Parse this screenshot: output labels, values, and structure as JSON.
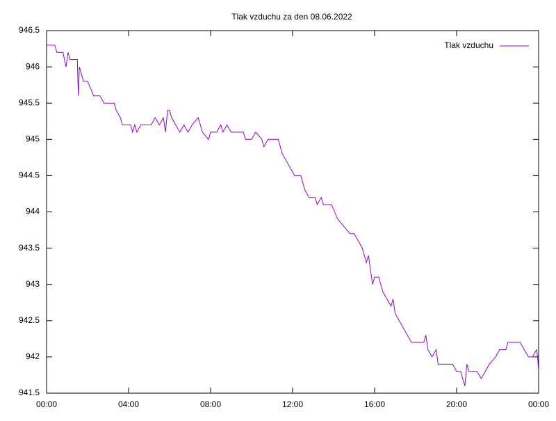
{
  "chart_data": {
    "type": "line",
    "title": "Tlak vzduchu za den 08.06.2022",
    "x": [
      0,
      0.4,
      0.5,
      0.8,
      0.95,
      1.05,
      1.15,
      1.3,
      1.5,
      1.55,
      1.6,
      1.7,
      1.8,
      2.0,
      2.3,
      2.6,
      2.8,
      3.3,
      3.4,
      3.6,
      3.7,
      4.1,
      4.2,
      4.3,
      4.4,
      4.6,
      5.1,
      5.3,
      5.5,
      5.7,
      5.8,
      5.9,
      6.0,
      6.1,
      6.3,
      6.5,
      6.7,
      6.9,
      7.1,
      7.4,
      7.6,
      7.9,
      8.0,
      8.3,
      8.5,
      8.6,
      8.8,
      9.0,
      9.6,
      9.7,
      10.0,
      10.2,
      10.5,
      10.6,
      10.8,
      11.3,
      11.5,
      11.7,
      11.9,
      12.1,
      12.4,
      12.6,
      12.8,
      13.1,
      13.2,
      13.4,
      13.5,
      13.9,
      14.2,
      14.5,
      14.8,
      15.0,
      15.2,
      15.4,
      15.6,
      15.7,
      15.8,
      15.9,
      16.0,
      16.2,
      16.4,
      16.6,
      16.8,
      16.9,
      17.0,
      17.2,
      17.4,
      17.6,
      17.8,
      18.4,
      18.5,
      18.6,
      18.8,
      19.0,
      19.1,
      19.8,
      20.0,
      20.2,
      20.4,
      20.5,
      20.6,
      21.0,
      21.2,
      21.4,
      21.6,
      21.9,
      22.1,
      22.4,
      22.5,
      23.1,
      23.3,
      23.5,
      23.7,
      23.9,
      23.95,
      24
    ],
    "series": [
      {
        "name": "Tlak vzduchu",
        "color": "#9400d3",
        "values": [
          946.3,
          946.3,
          946.2,
          946.2,
          946.0,
          946.2,
          946.1,
          946.1,
          946.1,
          945.6,
          946.0,
          945.9,
          945.8,
          945.8,
          945.6,
          945.6,
          945.5,
          945.5,
          945.4,
          945.3,
          945.2,
          945.2,
          945.1,
          945.2,
          945.1,
          945.2,
          945.2,
          945.3,
          945.2,
          945.3,
          945.1,
          945.4,
          945.4,
          945.3,
          945.2,
          945.1,
          945.2,
          945.1,
          945.2,
          945.3,
          945.1,
          945.0,
          945.1,
          945.1,
          945.2,
          945.1,
          945.2,
          945.1,
          945.1,
          945.0,
          945.0,
          945.1,
          945.0,
          944.9,
          945.0,
          945.0,
          944.8,
          944.7,
          944.6,
          944.5,
          944.5,
          944.3,
          944.2,
          944.2,
          944.1,
          944.2,
          944.1,
          944.1,
          943.9,
          943.8,
          943.7,
          943.7,
          943.6,
          943.5,
          943.3,
          943.4,
          943.2,
          943.0,
          943.1,
          943.1,
          942.9,
          942.8,
          942.7,
          942.8,
          942.6,
          942.5,
          942.4,
          942.3,
          942.2,
          942.2,
          942.3,
          942.1,
          942.0,
          942.1,
          941.9,
          941.9,
          941.8,
          941.8,
          941.6,
          941.9,
          941.8,
          941.8,
          941.7,
          941.8,
          941.9,
          942.0,
          942.1,
          942.1,
          942.2,
          942.2,
          942.1,
          942.0,
          942.0,
          942.1,
          942.0,
          941.8
        ]
      }
    ],
    "xlim": [
      0,
      24
    ],
    "xticks": [
      {
        "value": 0,
        "label": "00:00"
      },
      {
        "value": 4,
        "label": "04:00"
      },
      {
        "value": 8,
        "label": "08:00"
      },
      {
        "value": 12,
        "label": "12:00"
      },
      {
        "value": 16,
        "label": "16:00"
      },
      {
        "value": 20,
        "label": "20:00"
      },
      {
        "value": 24,
        "label": "00:00"
      }
    ],
    "ylim": [
      941.5,
      946.5
    ],
    "yticks": [
      941.5,
      942,
      942.5,
      943,
      943.5,
      944,
      944.5,
      945,
      945.5,
      946,
      946.5
    ],
    "grid": false,
    "legend": "top-right"
  }
}
